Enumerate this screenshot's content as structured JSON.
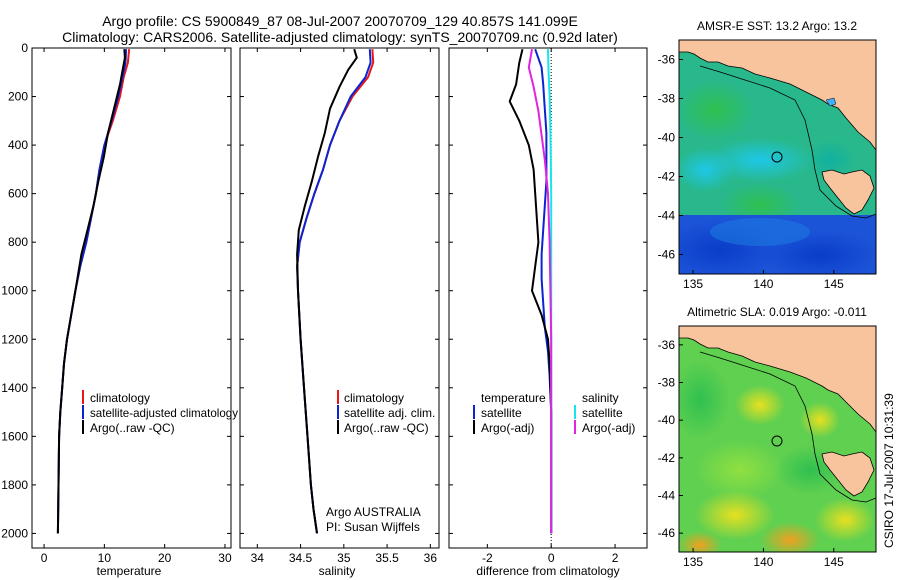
{
  "header": {
    "line1": "Argo profile: CS 5900849_87 08-Jul-2007 20070709_129 40.857S 141.099E",
    "line2": "Climatology: CARS2006. Satellite-adjusted climatology: synTS_20070709.nc (0.92d later)"
  },
  "colors": {
    "climatology": "#e8161b",
    "satellite": "#0a24d4",
    "argo": "#000000",
    "satellite_s": "#14e6ea",
    "argo_adj_s": "#e024e0",
    "land": "#f8c49e"
  },
  "chart_data": [
    {
      "type": "line",
      "id": "temperature",
      "xlabel": "temperature",
      "ylabel": "",
      "xlim": [
        -2,
        31
      ],
      "ylim": [
        2060,
        0
      ],
      "y_reversed": true,
      "xticks": [
        0,
        10,
        20,
        30
      ],
      "yticks": [
        0,
        200,
        400,
        600,
        800,
        1000,
        1200,
        1400,
        1600,
        1800,
        2000
      ],
      "series": [
        {
          "name": "climatology",
          "color": "#e8161b",
          "x": [
            14.1,
            13.9,
            13.2,
            12.6,
            11.4,
            10.0,
            9.2,
            8.6,
            7.8,
            7.0,
            6.0,
            5.2,
            4.5,
            3.8,
            3.3,
            3.0,
            2.7,
            2.5,
            2.4,
            2.3
          ],
          "y": [
            5,
            60,
            120,
            200,
            300,
            400,
            500,
            600,
            700,
            800,
            900,
            1000,
            1100,
            1200,
            1300,
            1400,
            1500,
            1600,
            1800,
            2000
          ]
        },
        {
          "name": "satellite-adjusted climatology",
          "color": "#0a24d4",
          "x": [
            13.6,
            13.5,
            13.0,
            12.3,
            11.2,
            10.0,
            9.2,
            8.6,
            7.8,
            7.0,
            6.0,
            5.2,
            4.5,
            3.8,
            3.3,
            3.0,
            2.7,
            2.5,
            2.4,
            2.3
          ],
          "y": [
            5,
            60,
            120,
            200,
            300,
            400,
            500,
            600,
            700,
            800,
            900,
            1000,
            1100,
            1200,
            1300,
            1400,
            1500,
            1600,
            1800,
            2000
          ]
        },
        {
          "name": "Argo(..raw -QC)",
          "color": "#000000",
          "x": [
            13.3,
            13.4,
            13.1,
            12.6,
            11.6,
            10.6,
            9.9,
            9.0,
            8.2,
            7.2,
            6.2,
            5.2,
            4.5,
            3.8,
            3.3,
            3.0,
            2.7,
            2.5,
            2.4,
            2.3
          ],
          "y": [
            5,
            40,
            80,
            150,
            250,
            350,
            450,
            550,
            650,
            750,
            850,
            1000,
            1100,
            1200,
            1300,
            1400,
            1500,
            1600,
            1800,
            2000
          ]
        }
      ],
      "legend": {
        "placement": "lower-center",
        "entries": [
          "climatology",
          "satellite-adjusted climatology",
          "Argo(..raw -QC)"
        ]
      }
    },
    {
      "type": "line",
      "id": "salinity",
      "xlabel": "salinity",
      "ylabel": "",
      "xlim": [
        33.8,
        36.1
      ],
      "ylim": [
        2060,
        0
      ],
      "y_reversed": true,
      "xticks": [
        34,
        34.5,
        35,
        35.5,
        36
      ],
      "xticklabels": [
        "34",
        "34.5",
        "35",
        "35.5",
        "36"
      ],
      "series": [
        {
          "name": "climatology",
          "color": "#e8161b",
          "x": [
            35.33,
            35.34,
            35.28,
            35.1,
            34.95,
            34.84,
            34.76,
            34.66,
            34.57,
            34.49,
            34.46,
            34.47,
            34.5,
            34.54,
            34.58,
            34.62,
            34.65,
            34.69
          ],
          "y": [
            5,
            60,
            120,
            200,
            300,
            400,
            500,
            600,
            700,
            800,
            900,
            1000,
            1200,
            1400,
            1600,
            1800,
            1900,
            2000
          ]
        },
        {
          "name": "satellite adj. clim.",
          "color": "#0a24d4",
          "x": [
            35.3,
            35.31,
            35.25,
            35.08,
            34.95,
            34.84,
            34.76,
            34.66,
            34.57,
            34.49,
            34.46,
            34.47,
            34.5,
            34.54,
            34.58,
            34.62,
            34.65,
            34.69
          ],
          "y": [
            5,
            60,
            120,
            200,
            300,
            400,
            500,
            600,
            700,
            800,
            900,
            1000,
            1200,
            1400,
            1600,
            1800,
            1900,
            2000
          ]
        },
        {
          "name": "Argo(..raw -QC)",
          "color": "#000000",
          "x": [
            35.12,
            35.15,
            35.05,
            34.95,
            34.84,
            34.78,
            34.7,
            34.63,
            34.55,
            34.48,
            34.46,
            34.47,
            34.5,
            34.54,
            34.58,
            34.62,
            34.65,
            34.69
          ],
          "y": [
            5,
            40,
            90,
            160,
            250,
            350,
            450,
            550,
            650,
            750,
            850,
            1000,
            1200,
            1400,
            1600,
            1800,
            1900,
            2000
          ]
        }
      ],
      "legend": {
        "placement": "lower-center",
        "entries": [
          "climatology",
          "satellite adj. clim.",
          "Argo(..raw -QC)"
        ]
      },
      "annotations": [
        "Argo AUSTRALIA",
        "PI: Susan Wijffels"
      ]
    },
    {
      "type": "line",
      "id": "difference",
      "xlabel": "difference from climatology",
      "ylabel": "",
      "xlim": [
        -3.2,
        3.0
      ],
      "ylim": [
        2060,
        0
      ],
      "y_reversed": true,
      "xticks": [
        -2,
        0,
        2
      ],
      "reference_line": {
        "x": 0,
        "style": "dotted"
      },
      "series": [
        {
          "name": "satellite (temperature)",
          "color": "#0a24d4",
          "x": [
            -0.5,
            -0.3,
            -0.25,
            -0.2,
            -0.15,
            -0.15,
            -0.15,
            -0.2,
            -0.25,
            -0.3,
            -0.3,
            -0.25,
            -0.2,
            -0.1,
            -0.05,
            0,
            0,
            0
          ],
          "y": [
            5,
            80,
            150,
            250,
            350,
            450,
            550,
            650,
            750,
            850,
            950,
            1050,
            1150,
            1250,
            1350,
            1500,
            1800,
            2000
          ]
        },
        {
          "name": "Argo(-adj) (temperature)",
          "color": "#000000",
          "x": [
            -0.9,
            -1.0,
            -1.1,
            -1.3,
            -1.0,
            -0.7,
            -0.55,
            -0.5,
            -0.45,
            -0.4,
            -0.5,
            -0.6,
            -0.3,
            -0.1,
            -0.05,
            0,
            0,
            0
          ],
          "y": [
            5,
            60,
            150,
            220,
            300,
            400,
            500,
            600,
            700,
            800,
            900,
            1000,
            1100,
            1200,
            1300,
            1500,
            1800,
            2000
          ]
        },
        {
          "name": "satellite (salinity)",
          "color": "#14e6ea",
          "x": [
            -0.1,
            -0.08,
            -0.05,
            -0.03,
            -0.02,
            0,
            0,
            0,
            0,
            0
          ],
          "y": [
            5,
            100,
            200,
            300,
            400,
            600,
            800,
            1200,
            1600,
            2000
          ]
        },
        {
          "name": "Argo(-adj) (salinity)",
          "color": "#e024e0",
          "x": [
            -0.6,
            -0.7,
            -0.55,
            -0.4,
            -0.3,
            -0.2,
            -0.1,
            -0.05,
            0,
            0,
            0
          ],
          "y": [
            5,
            80,
            160,
            260,
            360,
            460,
            600,
            800,
            1200,
            1600,
            2000
          ]
        }
      ],
      "legend": {
        "placement": "lower-center",
        "groups": [
          {
            "heading": "temperature",
            "entries": [
              "satellite",
              "Argo(-adj)"
            ]
          },
          {
            "heading": "salinity",
            "entries": [
              "satellite",
              "Argo(-adj)"
            ]
          }
        ]
      }
    },
    {
      "type": "heatmap",
      "id": "sst_map",
      "title": "AMSR-E SST: 13.2 Argo: 13.2",
      "xlim": [
        134,
        148
      ],
      "ylim": [
        -47,
        -35
      ],
      "xticks": [
        135,
        140,
        145
      ],
      "yticks": [
        -36,
        -38,
        -40,
        -42,
        -44,
        -46
      ],
      "xticklabels": [
        "135",
        "140",
        "145"
      ],
      "yticklabels": [
        "-36",
        "-38",
        "-40",
        "-42",
        "-44",
        "-46"
      ],
      "marker": {
        "lon": 141.1,
        "lat": -40.86,
        "shape": "circle"
      }
    },
    {
      "type": "heatmap",
      "id": "sla_map",
      "title": "Altimetric SLA: 0.019 Argo: -0.011",
      "xlim": [
        134,
        148
      ],
      "ylim": [
        -47,
        -35
      ],
      "xticks": [
        135,
        140,
        145
      ],
      "yticks": [
        -36,
        -38,
        -40,
        -42,
        -44,
        -46
      ],
      "xticklabels": [
        "135",
        "140",
        "145"
      ],
      "yticklabels": [
        "-36",
        "-38",
        "-40",
        "-42",
        "-44",
        "-46"
      ],
      "marker": {
        "lon": 141.1,
        "lat": -40.86,
        "shape": "circle"
      }
    }
  ],
  "credit": "CSIRO 17-Jul-2007 10:31:39"
}
